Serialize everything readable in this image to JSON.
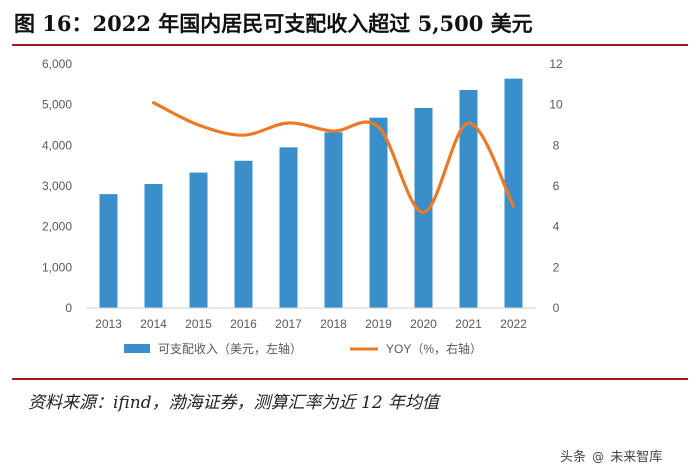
{
  "header": {
    "title": "图 16：2022 年国内居民可支配收入超过 5,500 美元"
  },
  "footer": {
    "source": "资料来源：ifind，渤海证券，测算汇率为近 12 年均值"
  },
  "watermark": {
    "prefix": "头条",
    "icon": "at-icon",
    "brand": "未来智库"
  },
  "colors": {
    "bar": "#3a8fcb",
    "line": "#ea7a26",
    "rule": "#a11b1b",
    "axis_text": "#595959"
  },
  "chart_data": {
    "type": "bar",
    "categories": [
      "2013",
      "2014",
      "2015",
      "2016",
      "2017",
      "2018",
      "2019",
      "2020",
      "2021",
      "2022"
    ],
    "series": [
      {
        "name": "可支配收入（美元，左轴）",
        "type": "bar",
        "axis": "left",
        "values": [
          2800,
          3050,
          3330,
          3620,
          3950,
          4320,
          4680,
          4920,
          5360,
          5640
        ]
      },
      {
        "name": "YOY（%，右轴）",
        "type": "line",
        "axis": "right",
        "values": [
          null,
          10.1,
          9.0,
          8.5,
          9.1,
          8.7,
          8.9,
          4.7,
          9.1,
          5.0
        ]
      }
    ],
    "left_axis": {
      "ylim": [
        0,
        6000
      ],
      "ticks": [
        "0",
        "1,000",
        "2,000",
        "3,000",
        "4,000",
        "5,000",
        "6,000"
      ]
    },
    "right_axis": {
      "ylim": [
        0,
        12
      ],
      "ticks": [
        "0",
        "2",
        "4",
        "6",
        "8",
        "10",
        "12"
      ]
    },
    "grid": false,
    "legend": "bottom"
  }
}
